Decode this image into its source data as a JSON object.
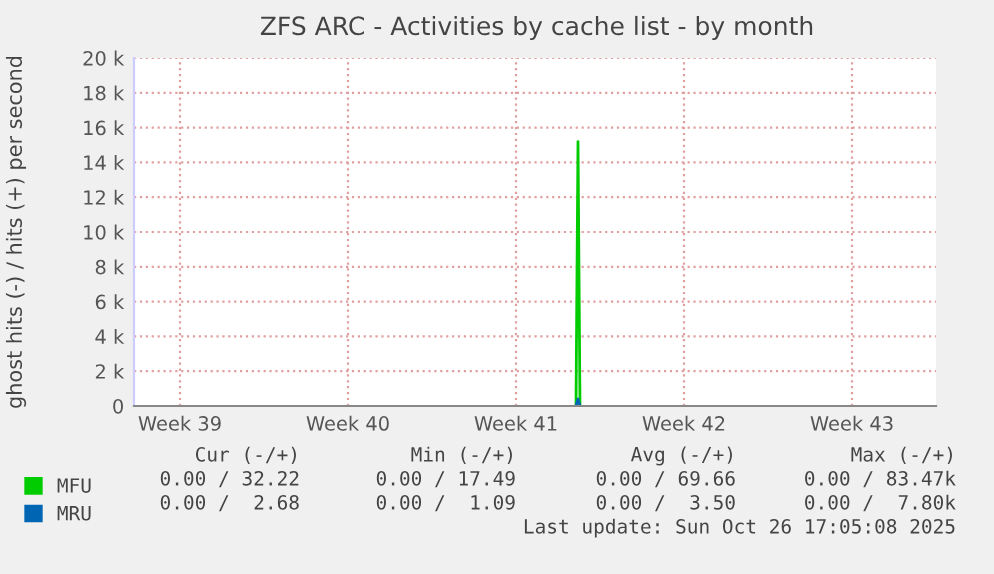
{
  "chart_data": {
    "type": "line",
    "title": "ZFS ARC - Activities by cache list - by month",
    "ylabel": "ghost hits (-) / hits (+) per second",
    "x": [
      "2025-10-12T00:00",
      "2025-10-12T02:00",
      "2025-10-12T04:00"
    ],
    "series": [
      {
        "name": "MFU",
        "color": "#00cc00",
        "values": [
          0,
          15200,
          0
        ]
      },
      {
        "name": "MRU",
        "color": "#0066b3",
        "values": [
          0,
          400,
          0
        ]
      }
    ],
    "xlim": [
      "2025-09-23T14:00",
      "2025-10-27T00:00"
    ],
    "xticks": [
      {
        "value": "2025-09-25T12:00",
        "label": "Week 39"
      },
      {
        "value": "2025-10-02T12:00",
        "label": "Week 40"
      },
      {
        "value": "2025-10-09T12:00",
        "label": "Week 41"
      },
      {
        "value": "2025-10-16T12:00",
        "label": "Week 42"
      },
      {
        "value": "2025-10-23T12:00",
        "label": "Week 43"
      }
    ],
    "ylim": [
      0,
      20000
    ],
    "yticks": [
      {
        "value": 0,
        "label": "0"
      },
      {
        "value": 2000,
        "label": "2 k"
      },
      {
        "value": 4000,
        "label": "4 k"
      },
      {
        "value": 6000,
        "label": "6 k"
      },
      {
        "value": 8000,
        "label": "8 k"
      },
      {
        "value": 10000,
        "label": "10 k"
      },
      {
        "value": 12000,
        "label": "12 k"
      },
      {
        "value": 14000,
        "label": "14 k"
      },
      {
        "value": 16000,
        "label": "16 k"
      },
      {
        "value": 18000,
        "label": "18 k"
      },
      {
        "value": 20000,
        "label": "20 k"
      }
    ],
    "grid": true,
    "legend": "bottom",
    "marker": "none",
    "line_style": "solid",
    "annotations": [
      "Cur (-/+)",
      "Min (-/+)",
      "Avg (-/+)",
      "Max (-/+)",
      "0.00 / 32.22",
      "0.00 / 17.49",
      "0.00 / 69.66",
      "0.00 / 83.47k",
      "0.00 /  2.68",
      "0.00 /  1.09",
      "0.00 /  3.50",
      "0.00 /  7.80k",
      "Last update: Sun Oct 26 17:05:08 2025"
    ]
  }
}
